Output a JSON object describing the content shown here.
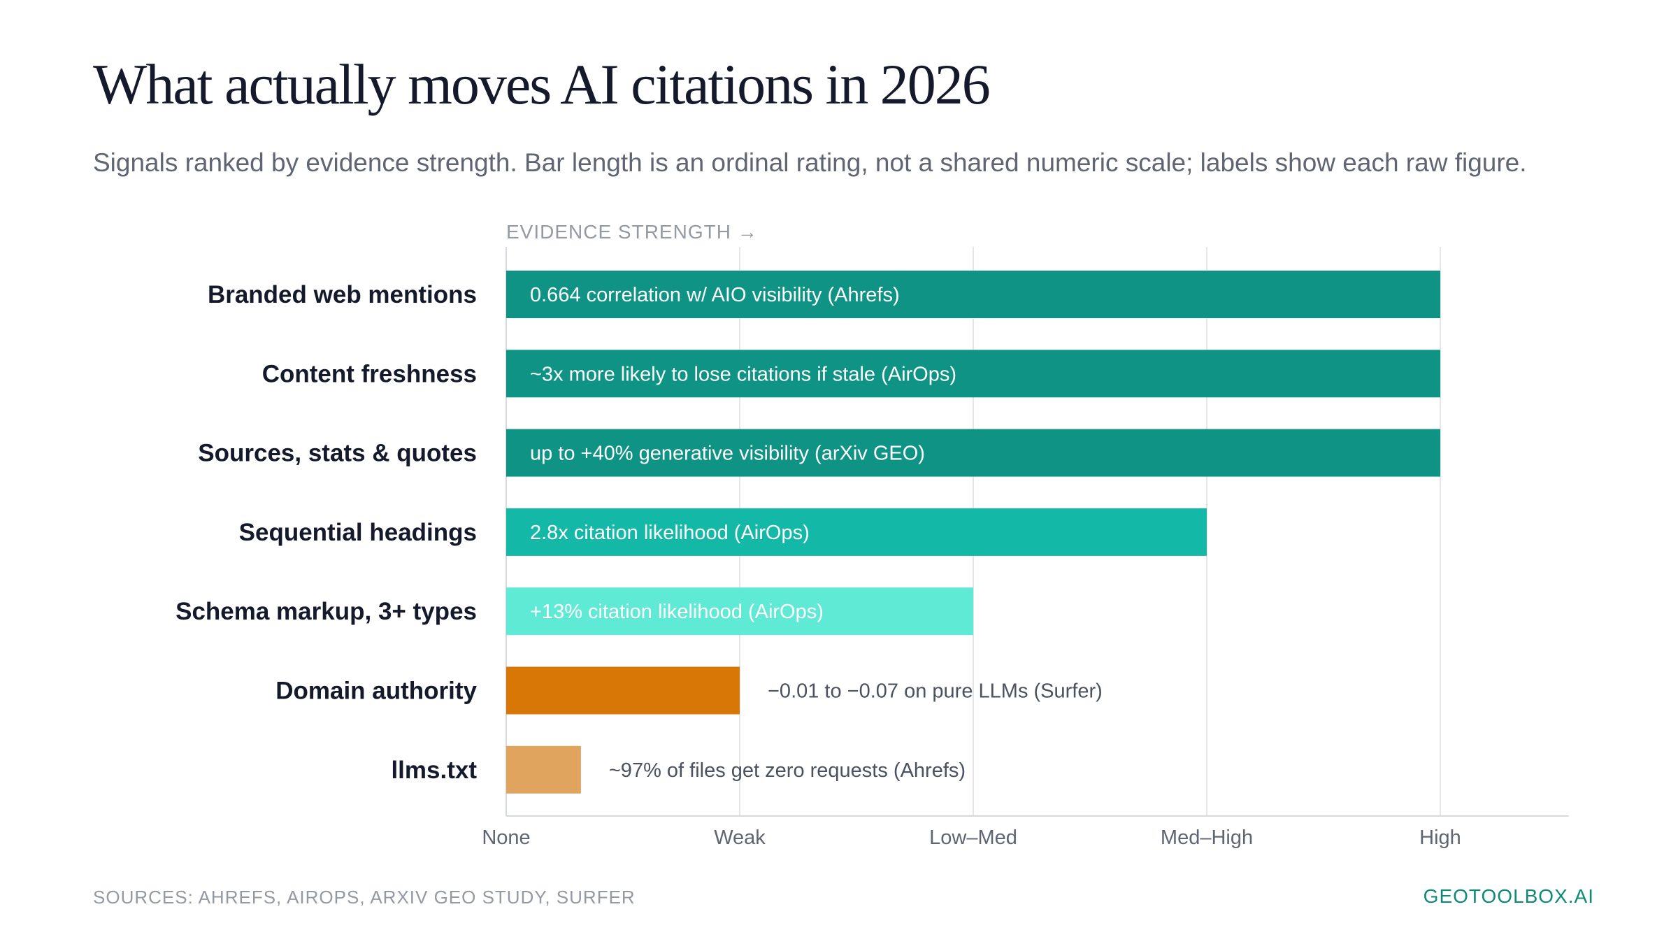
{
  "header": {
    "title": "What actually moves AI citations in 2026",
    "subtitle": "Signals ranked by evidence strength. Bar length is an ordinal rating, not a shared numeric scale; labels show each raw figure."
  },
  "chart_data": {
    "type": "bar",
    "orientation": "horizontal",
    "axis_caption": "EVIDENCE STRENGTH →",
    "x_ticks": [
      "None",
      "Weak",
      "Low–Med",
      "Med–High",
      "High"
    ],
    "xlim": [
      0,
      4.55
    ],
    "grid": true,
    "categories": [
      "Branded web mentions",
      "Content freshness",
      "Sources, stats & quotes",
      "Sequential headings",
      "Schema markup, 3+ types",
      "Domain authority",
      "llms.txt"
    ],
    "values": [
      4,
      4,
      4,
      3,
      2,
      1,
      0.32
    ],
    "bar_labels": [
      "0.664 correlation w/ AIO visibility (Ahrefs)",
      "~3x more likely to lose citations if stale (AirOps)",
      "up to +40% generative visibility (arXiv GEO)",
      "2.8x citation likelihood (AirOps)",
      "+13% citation likelihood (AirOps)",
      "−0.01 to −0.07 on pure LLMs (Surfer)",
      "~97% of files get zero requests (Ahrefs)"
    ],
    "label_inside": [
      true,
      true,
      true,
      true,
      true,
      false,
      false
    ],
    "colors": [
      "#0e9384",
      "#0e9384",
      "#0e9384",
      "#14b8a6",
      "#5eead4",
      "#d97706",
      "#e0a45e"
    ]
  },
  "footer": {
    "sources": "SOURCES: AHREFS, AIROPS, ARXIV GEO STUDY, SURFER",
    "brand": "GEOTOOLBOX.AI"
  }
}
